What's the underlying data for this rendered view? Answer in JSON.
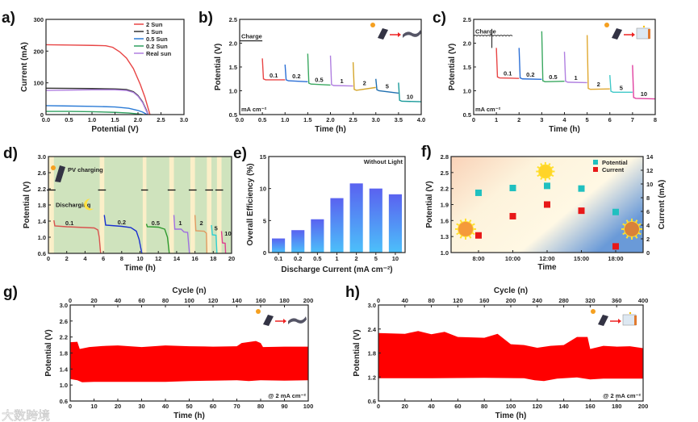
{
  "watermark": "大数跨境",
  "chart_data": [
    {
      "panel": "a",
      "panel_label": "a)",
      "type": "line",
      "xlabel": "Potential (V)",
      "ylabel": "Current (mA)",
      "xlim": [
        0,
        3
      ],
      "ylim": [
        0,
        300
      ],
      "xticks": [
        "0.0",
        "0.5",
        "1.0",
        "1.5",
        "2.0",
        "2.5",
        "3.0"
      ],
      "yticks": [
        "0",
        "100",
        "200",
        "300"
      ],
      "legend_position": "top-right",
      "series": [
        {
          "name": "2 Sun",
          "color": "#e84545",
          "points": [
            [
              0,
              220
            ],
            [
              0.5,
              219
            ],
            [
              1,
              218
            ],
            [
              1.3,
              217
            ],
            [
              1.45,
              212
            ],
            [
              1.6,
              198
            ],
            [
              1.75,
              178
            ],
            [
              1.9,
              145
            ],
            [
              2.05,
              95
            ],
            [
              2.15,
              55
            ],
            [
              2.26,
              0
            ]
          ]
        },
        {
          "name": "1 Sun",
          "color": "#333333",
          "points": [
            [
              0,
              83
            ],
            [
              1,
              82
            ],
            [
              1.5,
              81
            ],
            [
              1.75,
              79
            ],
            [
              1.9,
              72
            ],
            [
              2.0,
              60
            ],
            [
              2.1,
              40
            ],
            [
              2.18,
              15
            ],
            [
              2.22,
              0
            ]
          ]
        },
        {
          "name": "0.5 Sun",
          "color": "#2b7bd6",
          "points": [
            [
              0,
              28
            ],
            [
              0.5,
              27
            ],
            [
              1,
              26
            ],
            [
              1.5,
              24
            ],
            [
              1.8,
              20
            ],
            [
              2.0,
              13
            ],
            [
              2.1,
              8
            ],
            [
              2.2,
              0
            ]
          ]
        },
        {
          "name": "0.2 Sun",
          "color": "#2fa060",
          "points": [
            [
              0,
              10
            ],
            [
              0.5,
              10
            ],
            [
              1,
              9
            ],
            [
              1.5,
              7
            ],
            [
              1.8,
              5
            ],
            [
              2.0,
              2
            ],
            [
              2.1,
              0
            ]
          ]
        },
        {
          "name": "Real sun",
          "color": "#b07fe0",
          "points": [
            [
              0,
              76
            ],
            [
              0.5,
              77
            ],
            [
              1,
              78
            ],
            [
              1.5,
              78
            ],
            [
              1.75,
              76
            ],
            [
              1.9,
              70
            ],
            [
              2.0,
              58
            ],
            [
              2.1,
              38
            ],
            [
              2.18,
              12
            ],
            [
              2.22,
              0
            ]
          ]
        }
      ]
    },
    {
      "panel": "b",
      "panel_label": "b)",
      "type": "line",
      "xlabel": "Time (h)",
      "ylabel": "Potential (V)",
      "xlim": [
        0,
        4
      ],
      "ylim": [
        0.5,
        2.5
      ],
      "xticks": [
        "0.0",
        "0.5",
        "1.0",
        "1.5",
        "2.0",
        "2.5",
        "3.0",
        "3.5",
        "4.0"
      ],
      "yticks": [
        "0.5",
        "1.0",
        "1.5",
        "2.0",
        "2.5"
      ],
      "charge_label": "Charge",
      "charge_level": 2.05,
      "unit_label": "mA cm⁻²",
      "segments": [
        {
          "label": "0.1",
          "color": "#e84545",
          "start": 0.5,
          "end": 1.0,
          "peak": 1.68,
          "plateau_start": 1.23,
          "plateau_end": 1.23
        },
        {
          "label": "0.2",
          "color": "#2b6fd6",
          "start": 1.0,
          "end": 1.5,
          "peak": 1.55,
          "plateau_start": 1.21,
          "plateau_end": 1.19
        },
        {
          "label": "0.5",
          "color": "#3aa860",
          "start": 1.5,
          "end": 2.0,
          "peak": 1.78,
          "plateau_start": 1.14,
          "plateau_end": 1.12
        },
        {
          "label": "1",
          "color": "#b07fe0",
          "start": 2.0,
          "end": 2.5,
          "peak": 1.74,
          "plateau_start": 1.11,
          "plateau_end": 1.1
        },
        {
          "label": "2",
          "color": "#d4a52a",
          "start": 2.5,
          "end": 3.0,
          "peak": 1.6,
          "plateau_start": 1.01,
          "plateau_end": 1.07
        },
        {
          "label": "5",
          "color": "#1f6fb0",
          "start": 3.0,
          "end": 3.5,
          "peak": 1.25,
          "plateau_start": 1.0,
          "plateau_end": 0.95
        },
        {
          "label": "10",
          "color": "#1a9a9a",
          "start": 3.5,
          "end": 4.0,
          "peak": 1.17,
          "plateau_start": 0.78,
          "plateau_end": 0.77
        }
      ]
    },
    {
      "panel": "c",
      "panel_label": "c)",
      "type": "line",
      "xlabel": "Time (h)",
      "ylabel": "Potential (V)",
      "xlim": [
        0,
        8
      ],
      "ylim": [
        0.5,
        2.5
      ],
      "xticks": [
        "0",
        "1",
        "2",
        "3",
        "4",
        "5",
        "6",
        "7",
        "8"
      ],
      "yticks": [
        "0.5",
        "1.0",
        "1.5",
        "2.0",
        "2.5"
      ],
      "charge_label": "Charge",
      "charge_level": 2.15,
      "unit_label": "mA cm⁻²",
      "segments": [
        {
          "label": "0.1",
          "color": "#e84545",
          "start": 1,
          "end": 2,
          "peak": 1.9,
          "plateau_start": 1.27,
          "plateau_end": 1.26
        },
        {
          "label": "0.2",
          "color": "#2b6fd6",
          "start": 2,
          "end": 3,
          "peak": 1.9,
          "plateau_start": 1.25,
          "plateau_end": 1.24
        },
        {
          "label": "0.5",
          "color": "#3aa860",
          "start": 3,
          "end": 4,
          "peak": 2.25,
          "plateau_start": 1.19,
          "plateau_end": 1.2
        },
        {
          "label": "1",
          "color": "#b07fe0",
          "start": 4,
          "end": 5,
          "peak": 1.82,
          "plateau_start": 1.18,
          "plateau_end": 1.17
        },
        {
          "label": "2",
          "color": "#e0a830",
          "start": 5,
          "end": 6,
          "peak": 2.17,
          "plateau_start": 1.03,
          "plateau_end": 1.04
        },
        {
          "label": "5",
          "color": "#40c8c8",
          "start": 6,
          "end": 7,
          "peak": 1.33,
          "plateau_start": 0.97,
          "plateau_end": 0.97
        },
        {
          "label": "10",
          "color": "#e040a0",
          "start": 7,
          "end": 8,
          "peak": 1.54,
          "plateau_start": 0.84,
          "plateau_end": 0.83
        }
      ]
    },
    {
      "panel": "d",
      "panel_label": "d)",
      "type": "line",
      "xlabel": "Time (h)",
      "ylabel": "Potential (V)",
      "xlim": [
        0,
        20
      ],
      "ylim": [
        0.6,
        3.0
      ],
      "xticks": [
        "0",
        "2",
        "4",
        "6",
        "8",
        "10",
        "12",
        "14",
        "16",
        "18",
        "20"
      ],
      "yticks": [
        "0.6",
        "1.0",
        "1.4",
        "1.8",
        "2.2",
        "2.6",
        "3.0"
      ],
      "pv_label": "PV charging",
      "discharge_label": "Discharging",
      "charge_level": 2.17,
      "charging_bands": [
        [
          0,
          0.6
        ],
        [
          5.6,
          6.1
        ],
        [
          10.3,
          10.7
        ],
        [
          13.2,
          13.7
        ],
        [
          15.5,
          16.0
        ],
        [
          17.3,
          17.8
        ],
        [
          18.4,
          18.9
        ]
      ],
      "colors": {
        "background": "#cfe3bd",
        "band": "#fbefc8"
      },
      "series": [
        {
          "name": "0.1",
          "color": "#d9534f",
          "label_at": [
            2.3,
            1.3
          ],
          "points": [
            [
              0.6,
              1.42
            ],
            [
              0.7,
              1.28
            ],
            [
              2,
              1.26
            ],
            [
              4,
              1.24
            ],
            [
              5,
              1.23
            ],
            [
              5.4,
              1.18
            ],
            [
              5.55,
              1.0
            ],
            [
              5.7,
              0.6
            ]
          ]
        },
        {
          "name": "0.2",
          "color": "#1a2fd0",
          "label_at": [
            8,
            1.32
          ],
          "points": [
            [
              6.1,
              1.55
            ],
            [
              6.25,
              1.3
            ],
            [
              8,
              1.27
            ],
            [
              9,
              1.24
            ],
            [
              9.6,
              1.15
            ],
            [
              9.9,
              0.95
            ],
            [
              10.2,
              0.6
            ]
          ]
        },
        {
          "name": "0.5",
          "color": "#2e9a2e",
          "label_at": [
            11.7,
            1.3
          ],
          "points": [
            [
              10.7,
              1.33
            ],
            [
              10.8,
              1.26
            ],
            [
              12,
              1.25
            ],
            [
              12.7,
              1.2
            ],
            [
              13.0,
              1.0
            ],
            [
              13.2,
              0.6
            ]
          ]
        },
        {
          "name": "1",
          "color": "#a070e0",
          "label_at": [
            14.4,
            1.3
          ],
          "points": [
            [
              13.7,
              1.55
            ],
            [
              13.8,
              1.2
            ],
            [
              14.5,
              1.2
            ],
            [
              14.8,
              1.13
            ],
            [
              15.2,
              1.12
            ],
            [
              15.4,
              0.6
            ]
          ]
        },
        {
          "name": "2",
          "color": "#e09a60",
          "label_at": [
            16.7,
            1.3
          ],
          "points": [
            [
              16.0,
              1.55
            ],
            [
              16.1,
              1.16
            ],
            [
              17.0,
              1.15
            ],
            [
              17.25,
              1.1
            ],
            [
              17.3,
              0.6
            ]
          ]
        },
        {
          "name": "5",
          "color": "#30d0d0",
          "label_at": [
            18.3,
            1.17
          ],
          "points": [
            [
              17.8,
              1.3
            ],
            [
              17.9,
              1.06
            ],
            [
              18.3,
              1.05
            ],
            [
              18.4,
              0.6
            ]
          ]
        },
        {
          "name": "10",
          "color": "#e04090",
          "label_at": [
            19.6,
            1.04
          ],
          "points": [
            [
              18.9,
              1.15
            ],
            [
              19.0,
              0.86
            ],
            [
              19.3,
              0.85
            ],
            [
              19.35,
              0.6
            ]
          ]
        }
      ]
    },
    {
      "panel": "e",
      "panel_label": "e)",
      "type": "bar",
      "title": "Without Light",
      "xlabel": "Discharge Current (mA cm⁻²)",
      "ylabel": "Overall Efficiency (%)",
      "ylim": [
        0,
        15
      ],
      "categories": [
        "0.1",
        "0.2",
        "0.5",
        "1",
        "2",
        "5",
        "10"
      ],
      "values": [
        2.2,
        3.5,
        5.2,
        8.5,
        10.8,
        10.0,
        9.1
      ],
      "yticks": [
        "0",
        "5",
        "10",
        "15"
      ],
      "colors": {
        "top": "#5a62f0",
        "bottom": "#4cc0fa"
      }
    },
    {
      "panel": "f",
      "panel_label": "f)",
      "type": "scatter",
      "xlabel": "Time",
      "ylabel": "Potential (V)",
      "y2label": "Current (mA)",
      "categories": [
        "8:00",
        "10:00",
        "12:00",
        "15:00",
        "18:00"
      ],
      "ylim": [
        1.0,
        2.8
      ],
      "y2lim": [
        0,
        14
      ],
      "yticks": [
        "1.0",
        "1.3",
        "1.6",
        "1.9",
        "2.2",
        "2.5",
        "2.8"
      ],
      "y2ticks": [
        "0",
        "2",
        "4",
        "6",
        "8",
        "10",
        "12",
        "14"
      ],
      "legend_position": "top-right",
      "series": [
        {
          "name": "Potential",
          "color": "#20c0c0",
          "axis": "left",
          "values": [
            2.12,
            2.21,
            2.25,
            2.2,
            1.76
          ]
        },
        {
          "name": "Current",
          "color": "#e81818",
          "axis": "right",
          "values": [
            2.5,
            5.3,
            7.0,
            6.1,
            0.9
          ]
        }
      ]
    },
    {
      "panel": "g",
      "panel_label": "g)",
      "type": "area",
      "xlabel": "Time (h)",
      "ylabel": "Potential (V)",
      "x2label": "Cycle (n)",
      "xlim": [
        0,
        100
      ],
      "x2lim": [
        0,
        200
      ],
      "ylim": [
        0.6,
        3.0
      ],
      "xticks": [
        "0",
        "10",
        "20",
        "30",
        "40",
        "50",
        "60",
        "70",
        "80",
        "90",
        "100"
      ],
      "x2ticks": [
        "0",
        "20",
        "40",
        "60",
        "80",
        "100",
        "120",
        "140",
        "160",
        "180",
        "200"
      ],
      "yticks": [
        "0.6",
        "1.0",
        "1.4",
        "1.8",
        "2.2",
        "2.6",
        "3.0"
      ],
      "annotation": "@ 2 mA cm⁻²",
      "color": "#ff0000",
      "upper": [
        [
          0,
          2.07
        ],
        [
          3,
          2.08
        ],
        [
          4,
          1.9
        ],
        [
          8,
          1.95
        ],
        [
          15,
          1.98
        ],
        [
          20,
          1.99
        ],
        [
          30,
          1.95
        ],
        [
          40,
          1.99
        ],
        [
          50,
          1.97
        ],
        [
          60,
          1.96
        ],
        [
          70,
          1.97
        ],
        [
          72,
          2.05
        ],
        [
          78,
          2.1
        ],
        [
          80,
          2.05
        ],
        [
          81,
          1.95
        ],
        [
          90,
          1.96
        ],
        [
          100,
          1.96
        ]
      ],
      "lower": [
        [
          0,
          1.15
        ],
        [
          3,
          1.12
        ],
        [
          5,
          1.07
        ],
        [
          10,
          1.08
        ],
        [
          20,
          1.08
        ],
        [
          30,
          1.08
        ],
        [
          40,
          1.08
        ],
        [
          50,
          1.1
        ],
        [
          60,
          1.11
        ],
        [
          70,
          1.12
        ],
        [
          75,
          1.1
        ],
        [
          80,
          1.12
        ],
        [
          90,
          1.11
        ],
        [
          100,
          1.12
        ]
      ]
    },
    {
      "panel": "h",
      "panel_label": "h)",
      "type": "area",
      "xlabel": "Time (h)",
      "ylabel": "Potential (V)",
      "x2label": "Cycle (n)",
      "xlim": [
        0,
        200
      ],
      "x2lim": [
        0,
        400
      ],
      "ylim": [
        0.6,
        3.0
      ],
      "xticks": [
        "0",
        "20",
        "40",
        "60",
        "80",
        "100",
        "120",
        "140",
        "160",
        "180",
        "200"
      ],
      "x2ticks": [
        "0",
        "40",
        "80",
        "120",
        "160",
        "200",
        "240",
        "280",
        "320",
        "360",
        "400"
      ],
      "yticks": [
        "0.6",
        "1.2",
        "1.8",
        "2.4",
        "3.0"
      ],
      "annotation": "@ 2 mA cm⁻²",
      "color": "#ff0000",
      "upper": [
        [
          0,
          2.3
        ],
        [
          20,
          2.28
        ],
        [
          30,
          2.35
        ],
        [
          40,
          2.27
        ],
        [
          50,
          2.33
        ],
        [
          60,
          2.2
        ],
        [
          80,
          2.18
        ],
        [
          90,
          2.28
        ],
        [
          100,
          2.02
        ],
        [
          110,
          2.0
        ],
        [
          120,
          1.93
        ],
        [
          130,
          1.98
        ],
        [
          140,
          2.0
        ],
        [
          150,
          2.2
        ],
        [
          158,
          2.2
        ],
        [
          160,
          1.9
        ],
        [
          170,
          1.98
        ],
        [
          180,
          1.96
        ],
        [
          190,
          1.97
        ],
        [
          200,
          1.92
        ]
      ],
      "lower": [
        [
          0,
          1.17
        ],
        [
          40,
          1.17
        ],
        [
          80,
          1.18
        ],
        [
          110,
          1.17
        ],
        [
          118,
          1.12
        ],
        [
          125,
          1.1
        ],
        [
          135,
          1.16
        ],
        [
          150,
          1.19
        ],
        [
          160,
          1.14
        ],
        [
          170,
          1.16
        ],
        [
          200,
          1.16
        ]
      ]
    }
  ]
}
